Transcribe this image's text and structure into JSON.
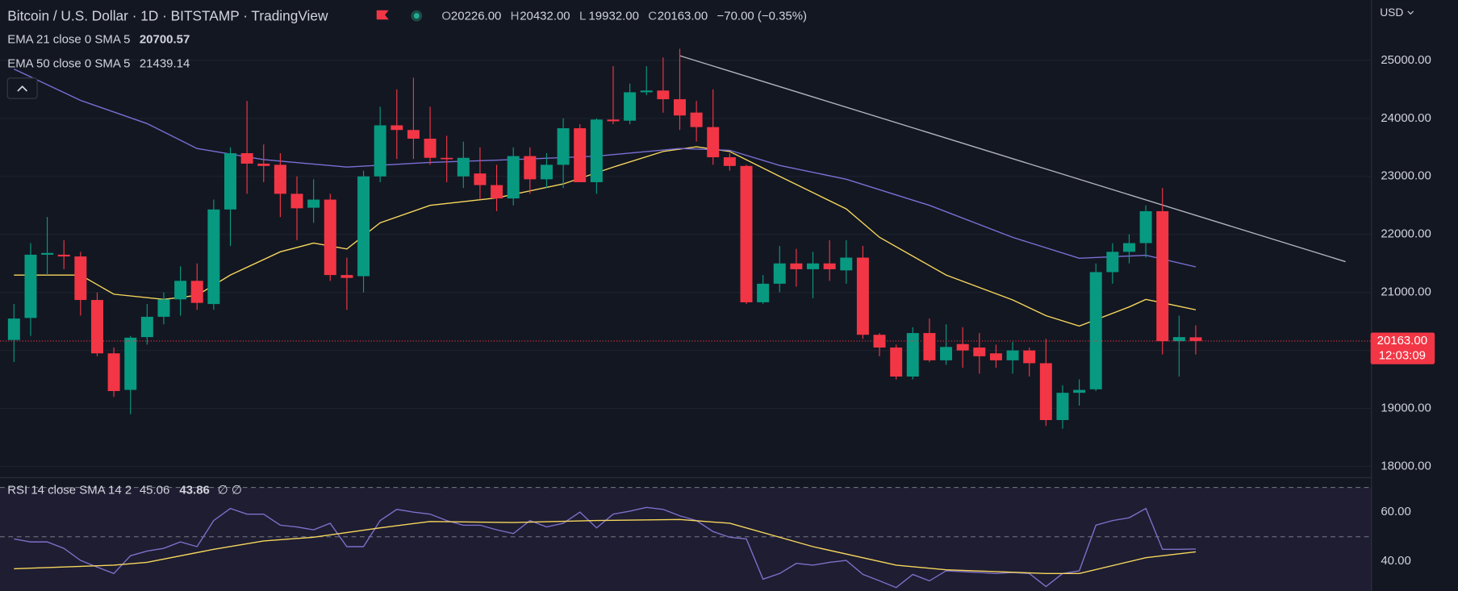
{
  "chart_data": [
    {
      "type": "candlestick",
      "title": "Bitcoin / U.S. Dollar · 1D · BITSTAMP · TradingView",
      "ohlc_header": [
        {
          "key": "O",
          "text": "20226.00"
        },
        {
          "key": "H",
          "text": "20432.00"
        },
        {
          "key": "L",
          "text": "19932.00"
        },
        {
          "key": "C",
          "text": "20163.00"
        },
        {
          "key": "",
          "text": "−70.00 (−0.35%)"
        }
      ],
      "currency": "USD",
      "up_color": "#089981",
      "down_color": "#f23645",
      "open": [
        20180,
        20560,
        21650,
        21650,
        21620,
        20870,
        19950,
        19320,
        20230,
        20580,
        20880,
        21200,
        20800,
        22430,
        23400,
        23220,
        23200,
        22700,
        22460,
        22600,
        21300,
        21280,
        23000,
        23880,
        23800,
        23650,
        23320,
        23000,
        23050,
        22850,
        22620,
        23350,
        22950,
        23200,
        23830,
        22900,
        23980,
        23960,
        24450,
        24480,
        24330,
        24100,
        23850,
        23330,
        23180,
        20830,
        21150,
        21500,
        21400,
        21500,
        21380,
        21600,
        20270,
        20050,
        19550,
        20300,
        19830,
        20110,
        20050,
        19950,
        19830,
        20000,
        19780,
        18800,
        19270,
        19330,
        21350,
        21700,
        21850,
        22400,
        20160,
        20226
      ],
      "high": [
        20800,
        21850,
        22300,
        21900,
        21700,
        21000,
        20050,
        20250,
        20800,
        21000,
        21450,
        21500,
        22600,
        23500,
        24300,
        23550,
        23400,
        23000,
        22950,
        22700,
        21600,
        23100,
        24200,
        24500,
        24700,
        24200,
        23700,
        23600,
        23500,
        23200,
        23500,
        23500,
        23400,
        24000,
        23900,
        24000,
        24900,
        24600,
        24900,
        25050,
        25200,
        24300,
        24500,
        23400,
        23200,
        21300,
        21800,
        21750,
        21700,
        21900,
        21900,
        21800,
        20300,
        20100,
        20400,
        20550,
        20450,
        20400,
        20300,
        20100,
        20150,
        20050,
        20200,
        19400,
        19500,
        21500,
        21850,
        22000,
        22500,
        22800,
        20600,
        20432
      ],
      "low": [
        19800,
        20250,
        21300,
        21400,
        20600,
        19900,
        19200,
        18900,
        20100,
        20450,
        20600,
        20700,
        20700,
        21800,
        22700,
        22900,
        22300,
        21900,
        22200,
        21200,
        20700,
        21000,
        22900,
        23300,
        23300,
        23200,
        22900,
        22800,
        22600,
        22400,
        22500,
        22700,
        22800,
        22800,
        22900,
        22700,
        23900,
        23900,
        24400,
        24100,
        23800,
        23600,
        23200,
        23100,
        20800,
        20800,
        21000,
        21100,
        20900,
        21200,
        21150,
        20200,
        19900,
        19500,
        19500,
        19800,
        19750,
        19700,
        19600,
        19700,
        19600,
        19550,
        18700,
        18650,
        19050,
        19300,
        21150,
        21500,
        21600,
        19930,
        19550,
        19932
      ],
      "close": [
        20550,
        21650,
        21680,
        21620,
        20870,
        19950,
        19300,
        20220,
        20580,
        20880,
        21200,
        20820,
        22430,
        23400,
        23220,
        23180,
        22700,
        22450,
        22600,
        21300,
        21250,
        23000,
        23880,
        23800,
        23650,
        23320,
        23300,
        23320,
        22850,
        22620,
        23350,
        22950,
        23200,
        23830,
        22900,
        23980,
        23950,
        24450,
        24480,
        24330,
        24050,
        23850,
        23330,
        23180,
        20830,
        21150,
        21500,
        21400,
        21500,
        21400,
        21600,
        20270,
        20050,
        19550,
        20300,
        19830,
        20060,
        20000,
        19900,
        19830,
        20000,
        19780,
        18800,
        19270,
        19320,
        21350,
        21700,
        21850,
        22400,
        20160,
        20230,
        20163
      ],
      "series": [
        {
          "name": "EMA 21 close 0 SMA 5",
          "legend_value": "20700.57",
          "color": "#f7d75c",
          "x": [
            0,
            4,
            6,
            9,
            11,
            13,
            16,
            18,
            20,
            22,
            25,
            29,
            33,
            36,
            39,
            41,
            43,
            46,
            50,
            52,
            56,
            60,
            62,
            64,
            67,
            68,
            69,
            71
          ],
          "values": [
            21300,
            21300,
            20970,
            20880,
            20950,
            21300,
            21700,
            21850,
            21750,
            22200,
            22500,
            22630,
            22870,
            23160,
            23430,
            23510,
            23430,
            23000,
            22440,
            21950,
            21300,
            20870,
            20600,
            20420,
            20750,
            20880,
            20820,
            20700
          ]
        },
        {
          "name": "EMA 50 close 0 SMA 5",
          "legend_value": "21439.14",
          "color": "#7b6fd6",
          "x": [
            0,
            4,
            8,
            11,
            15,
            20,
            25,
            30,
            35,
            40,
            43,
            46,
            50,
            55,
            60,
            64,
            68,
            71
          ],
          "values": [
            24850,
            24310,
            23910,
            23480,
            23290,
            23160,
            23240,
            23290,
            23350,
            23480,
            23450,
            23190,
            22950,
            22500,
            21950,
            21590,
            21640,
            21440
          ]
        }
      ],
      "trendline": {
        "x": [
          40,
          80
        ],
        "values": [
          25080,
          21530
        ],
        "color": "#b2b5be"
      },
      "last_price": {
        "value": 20163,
        "label": "20163.00",
        "countdown": "12:03:09"
      },
      "xlim": [
        -0.84,
        81.56
      ],
      "ylim": [
        17840,
        26040
      ],
      "yticks": [
        {
          "value": 25000,
          "label": "25000.00"
        },
        {
          "value": 24000,
          "label": "24000.00"
        },
        {
          "value": 23000,
          "label": "23000.00"
        },
        {
          "value": 22000,
          "label": "22000.00"
        },
        {
          "value": 21000,
          "label": "21000.00"
        },
        {
          "value": 20000,
          "label": "20000.00"
        },
        {
          "value": 19000,
          "label": "19000.00"
        },
        {
          "value": 18000,
          "label": "18000.00"
        }
      ],
      "grid": true
    },
    {
      "type": "line",
      "title": "RSI 14 close SMA 14 2",
      "extra": "∅ ∅",
      "series": [
        {
          "name": "RSI",
          "legend_value": "45.06",
          "color": "#7e6fc9",
          "values": [
            49.1,
            47.9,
            47.9,
            45.3,
            40.4,
            37.7,
            35.1,
            42.3,
            44.2,
            45.3,
            47.9,
            46.0,
            56.6,
            61.5,
            59.2,
            59.2,
            54.7,
            54.0,
            52.8,
            55.5,
            46.0,
            46.0,
            56.6,
            61.1,
            60.0,
            59.2,
            56.6,
            54.7,
            54.7,
            52.8,
            51.3,
            56.6,
            54.0,
            55.5,
            60.0,
            53.6,
            59.2,
            60.4,
            61.9,
            61.1,
            58.5,
            56.6,
            52.1,
            49.8,
            49.1,
            32.8,
            35.1,
            39.2,
            38.5,
            39.6,
            40.4,
            34.7,
            32.1,
            29.4,
            34.7,
            32.1,
            36.2,
            35.8,
            35.5,
            35.1,
            35.5,
            35.1,
            29.8,
            35.1,
            36.2,
            54.7,
            56.6,
            57.7,
            61.5,
            44.9,
            44.9,
            45.06
          ]
        },
        {
          "name": "SMA",
          "legend_value": "43.86",
          "color": "#f7d75c",
          "x": [
            0,
            6,
            8,
            12,
            15,
            18,
            22,
            25,
            30,
            35,
            40,
            43,
            48,
            53,
            56,
            62,
            64,
            68,
            71
          ],
          "values": [
            37.0,
            38.5,
            39.6,
            44.9,
            48.3,
            49.8,
            53.6,
            56.2,
            55.8,
            56.6,
            57.0,
            55.5,
            46.0,
            38.5,
            36.6,
            35.1,
            35.1,
            41.5,
            43.86
          ]
        }
      ],
      "levels": [
        70,
        50
      ],
      "xlim": [
        -0.84,
        81.56
      ],
      "ylim": [
        28,
        72.5
      ],
      "yticks": [
        {
          "value": 60,
          "label": "60.00"
        },
        {
          "value": 40,
          "label": "40.00"
        }
      ]
    }
  ]
}
